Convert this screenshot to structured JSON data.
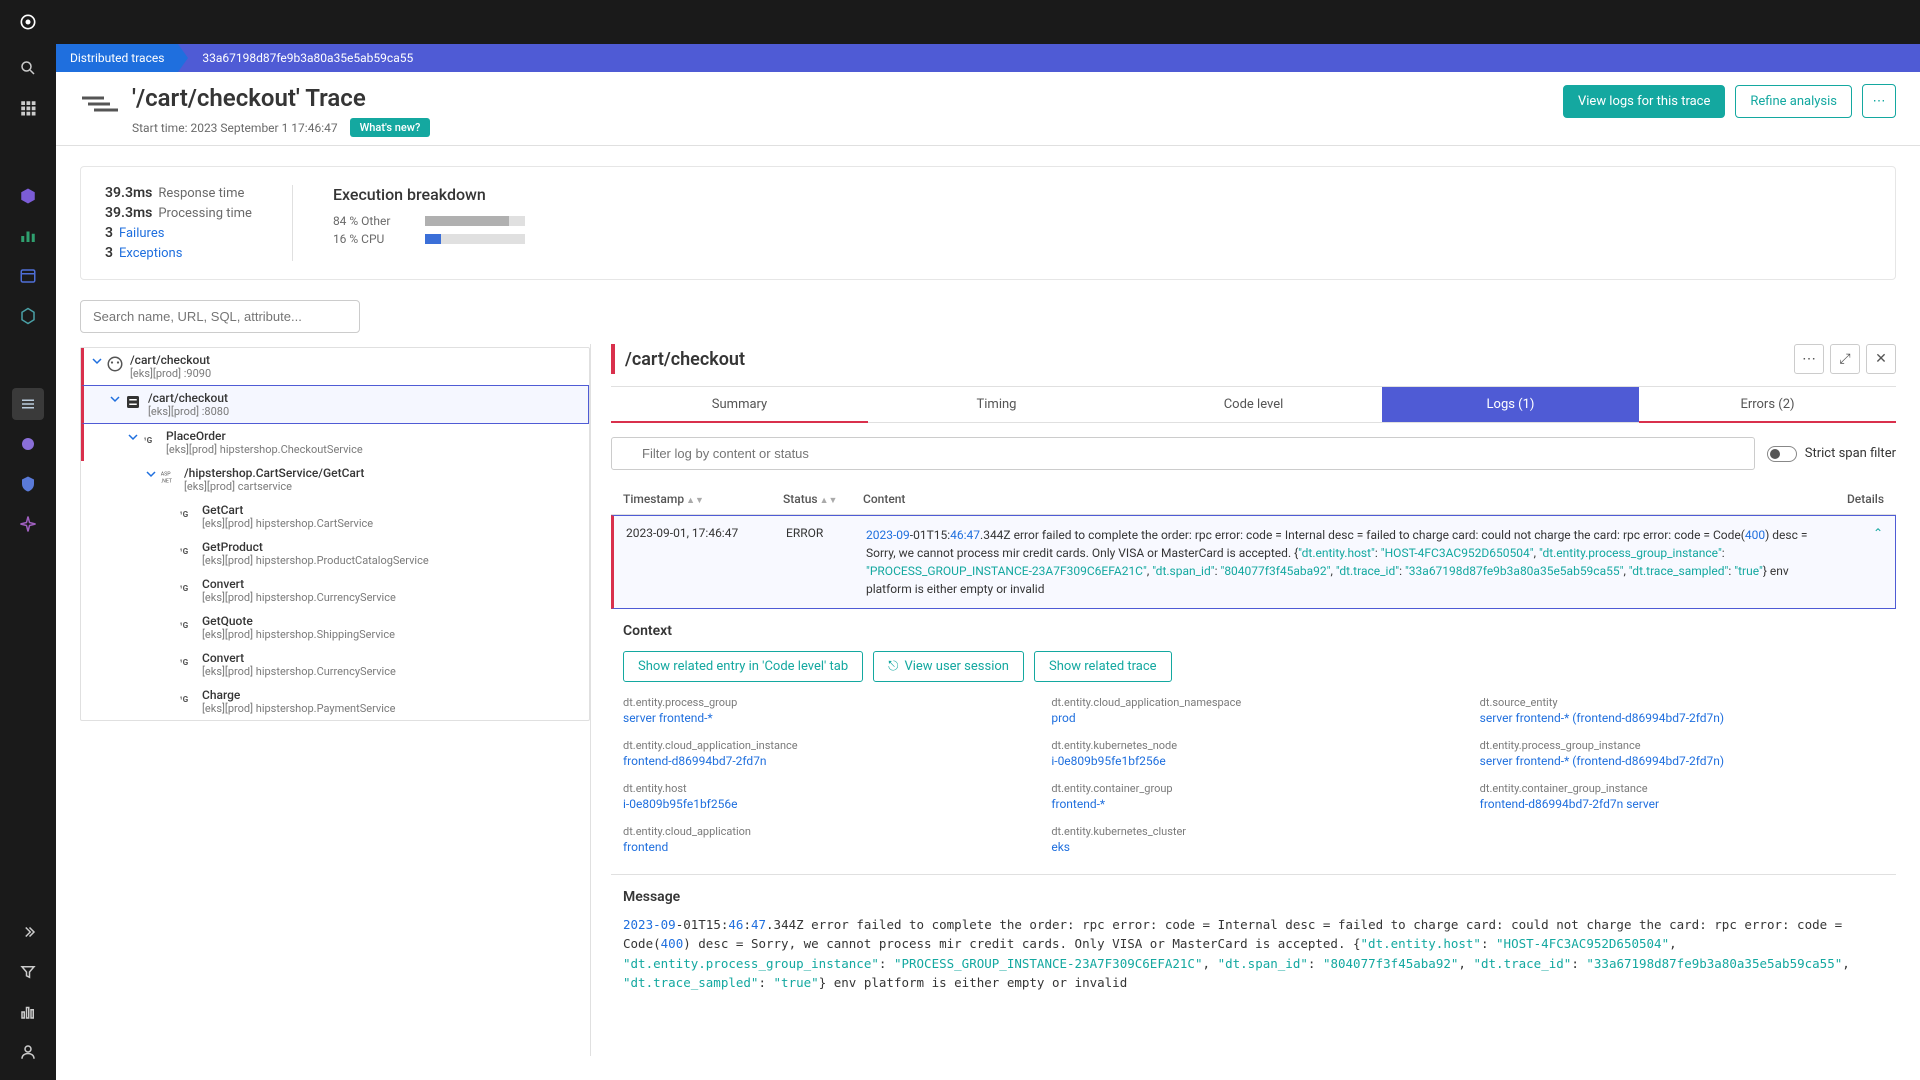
{
  "breadcrumb": {
    "root": "Distributed traces",
    "current": "33a67198d87fe9b3a80a35e5ab59ca55"
  },
  "header": {
    "title": "'/cart/checkout' Trace",
    "start_label": "Start time: 2023 September 1 17:46:47",
    "whatsnew": "What's new?",
    "btn_logs": "View logs for this trace",
    "btn_refine": "Refine analysis"
  },
  "metrics": {
    "response_val": "39.3ms",
    "response_label": "Response time",
    "processing_val": "39.3ms",
    "processing_label": "Processing time",
    "failures_count": "3",
    "failures_label": "Failures",
    "exceptions_count": "3",
    "exceptions_label": "Exceptions"
  },
  "exec": {
    "title": "Execution breakdown",
    "rows": [
      {
        "label": "84 % Other",
        "pct": 84,
        "color": "#b0b0b0"
      },
      {
        "label": "16 % CPU",
        "pct": 16,
        "color": "#3b6fd8"
      }
    ]
  },
  "search_placeholder": "Search name, URL, SQL, attribute...",
  "tree": [
    {
      "indent": 0,
      "title": "/cart/checkout",
      "sub": "[eks][prod] :9090",
      "error": true,
      "selected": false,
      "toggle": true,
      "icon": "go"
    },
    {
      "indent": 1,
      "title": "/cart/checkout",
      "sub": "[eks][prod] :8080",
      "error": true,
      "selected": true,
      "toggle": true,
      "icon": "box"
    },
    {
      "indent": 2,
      "title": "PlaceOrder",
      "sub": "[eks][prod] hipstershop.CheckoutService",
      "error": true,
      "toggle": true,
      "icon": "go2"
    },
    {
      "indent": 3,
      "title": "/hipstershop.CartService/GetCart",
      "sub": "[eks][prod] cartservice",
      "toggle": true,
      "icon": "asp"
    },
    {
      "indent": 4,
      "title": "GetCart",
      "sub": "[eks][prod] hipstershop.CartService",
      "icon": "go2"
    },
    {
      "indent": 4,
      "title": "GetProduct",
      "sub": "[eks][prod] hipstershop.ProductCatalogService",
      "icon": "go2"
    },
    {
      "indent": 4,
      "title": "Convert",
      "sub": "[eks][prod] hipstershop.CurrencyService",
      "icon": "go2"
    },
    {
      "indent": 4,
      "title": "GetQuote",
      "sub": "[eks][prod] hipstershop.ShippingService",
      "icon": "go2"
    },
    {
      "indent": 4,
      "title": "Convert",
      "sub": "[eks][prod] hipstershop.CurrencyService",
      "icon": "go2"
    },
    {
      "indent": 4,
      "title": "Charge",
      "sub": "[eks][prod] hipstershop.PaymentService",
      "icon": "go2"
    }
  ],
  "detail": {
    "title": "/cart/checkout",
    "tabs": {
      "summary": "Summary",
      "timing": "Timing",
      "code": "Code level",
      "logs": "Logs (1)",
      "errors": "Errors (2)"
    },
    "filter_placeholder": "Filter log by content or status",
    "strict_label": "Strict span filter",
    "cols": {
      "ts": "Timestamp",
      "status": "Status",
      "content": "Content",
      "details": "Details"
    },
    "log": {
      "ts": "2023-09-01, 17:46:47",
      "status": "ERROR",
      "p_date": "2023-09",
      "p_time": "-01T15:",
      "p_hms": "46:47",
      "p_ms": ".344Z error failed to complete the order: rpc error: code = Internal desc = failed to charge card: could not charge the card: rpc error: code = Code(",
      "p_code": "400",
      "p_after_code": ") desc = Sorry, we cannot process mir credit cards. Only VISA or MasterCard is accepted. {",
      "k1": "\"dt.entity.host\"",
      "v1": "\"HOST-4FC3AC952D650504\"",
      "k2": "\"dt.entity.process_group_instance\"",
      "v2": "\"PROCESS_GROUP_INSTANCE-23A7F309C6EFA21C\"",
      "k3": "\"dt.span_id\"",
      "v3": "\"804077f3f45aba92\"",
      "k4": "\"dt.trace_id\"",
      "v4": "\"33a67198d87fe9b3a80a35e5ab59ca55\"",
      "k5": "\"dt.trace_sampled\"",
      "v5": "\"true\"",
      "p_tail": "} env platform is either empty or invalid"
    },
    "context": {
      "title": "Context",
      "btn1": "Show related entry in 'Code level' tab",
      "btn2": "View user session",
      "btn3": "Show related trace",
      "items": [
        {
          "label": "dt.entity.process_group",
          "val": "server frontend-*"
        },
        {
          "label": "dt.entity.cloud_application_namespace",
          "val": "prod"
        },
        {
          "label": "dt.source_entity",
          "val": "server frontend-* (frontend-d86994bd7-2fd7n)"
        },
        {
          "label": "dt.entity.cloud_application_instance",
          "val": "frontend-d86994bd7-2fd7n"
        },
        {
          "label": "dt.entity.kubernetes_node",
          "val": "i-0e809b95fe1bf256e"
        },
        {
          "label": "dt.entity.process_group_instance",
          "val": "server frontend-* (frontend-d86994bd7-2fd7n)"
        },
        {
          "label": "dt.entity.host",
          "val": "i-0e809b95fe1bf256e"
        },
        {
          "label": "dt.entity.container_group",
          "val": "frontend-*"
        },
        {
          "label": "dt.entity.container_group_instance",
          "val": "frontend-d86994bd7-2fd7n server"
        },
        {
          "label": "dt.entity.cloud_application",
          "val": "frontend"
        },
        {
          "label": "dt.entity.kubernetes_cluster",
          "val": "eks"
        }
      ]
    },
    "message": {
      "title": "Message"
    }
  }
}
